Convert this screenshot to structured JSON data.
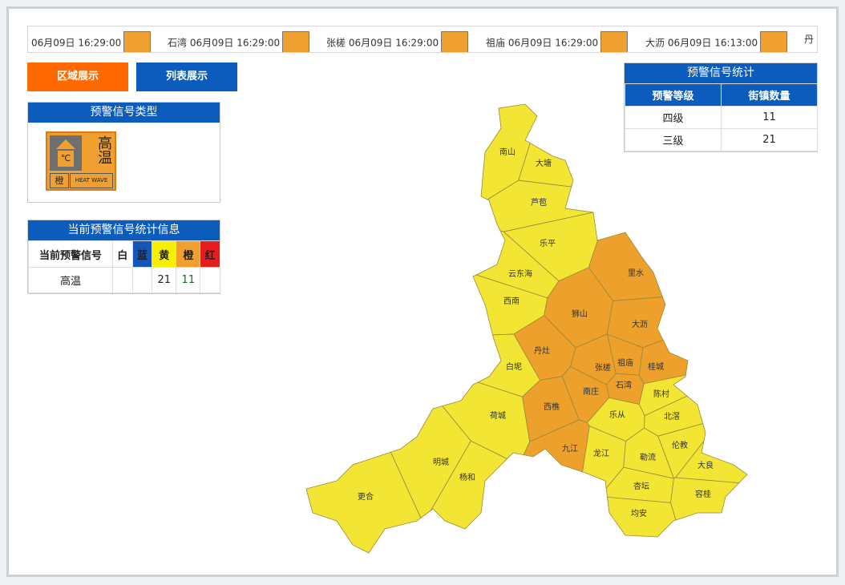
{
  "ticker": [
    {
      "time": "06月09日 16:29:00"
    },
    {
      "town": "石湾",
      "time": "06月09日 16:29:00"
    },
    {
      "town": "张槎",
      "time": "06月09日 16:29:00"
    },
    {
      "town": "祖庙",
      "time": "06月09日 16:29:00"
    },
    {
      "town": "大沥",
      "time": "06月09日 16:13:00"
    },
    {
      "town": "丹"
    }
  ],
  "buttons": [
    "区域展示",
    "列表展示"
  ],
  "signal_type": {
    "title": "预警信号类型",
    "icon": {
      "unit": "℃",
      "name": "高温",
      "level": "橙",
      "english": "HEAT WAVE"
    }
  },
  "current_stats": {
    "title": "当前预警信号统计信息",
    "headers": [
      "当前预警信号",
      "白",
      "蓝",
      "黄",
      "橙",
      "红"
    ],
    "rows": [
      {
        "signal": "高温",
        "yellow": 21,
        "orange": 11
      }
    ]
  },
  "level_stats": {
    "title": "预警信号统计",
    "headers": [
      "预警等级",
      "街镇数量"
    ],
    "rows": [
      [
        "四级",
        11
      ],
      [
        "三级",
        21
      ]
    ]
  },
  "map": {
    "towns": [
      {
        "name": "南山",
        "color": "#f2e533"
      },
      {
        "name": "大塘",
        "color": "#f2e533"
      },
      {
        "name": "芦苞",
        "color": "#f2e533"
      },
      {
        "name": "乐平",
        "color": "#f2e533"
      },
      {
        "name": "云东海",
        "color": "#f2e533"
      },
      {
        "name": "西南",
        "color": "#f2e533"
      },
      {
        "name": "里水",
        "color": "#eda02b"
      },
      {
        "name": "狮山",
        "color": "#eda02b"
      },
      {
        "name": "大沥",
        "color": "#eda02b"
      },
      {
        "name": "丹灶",
        "color": "#eda02b"
      },
      {
        "name": "祖庙",
        "color": "#eda02b"
      },
      {
        "name": "桂城",
        "color": "#eda02b"
      },
      {
        "name": "张槎",
        "color": "#eda02b"
      },
      {
        "name": "石湾",
        "color": "#eda02b"
      },
      {
        "name": "白坭",
        "color": "#f2e533"
      },
      {
        "name": "南庄",
        "color": "#eda02b"
      },
      {
        "name": "陈村",
        "color": "#f2e533"
      },
      {
        "name": "北滘",
        "color": "#f2e533"
      },
      {
        "name": "乐从",
        "color": "#f2e533"
      },
      {
        "name": "西樵",
        "color": "#eda02b"
      },
      {
        "name": "荷城",
        "color": "#f2e533"
      },
      {
        "name": "九江",
        "color": "#eda02b"
      },
      {
        "name": "龙江",
        "color": "#f2e533"
      },
      {
        "name": "勒流",
        "color": "#f2e533"
      },
      {
        "name": "伦教",
        "color": "#f2e533"
      },
      {
        "name": "大良",
        "color": "#f2e533"
      },
      {
        "name": "杏坛",
        "color": "#f2e533"
      },
      {
        "name": "容桂",
        "color": "#f2e533"
      },
      {
        "name": "均安",
        "color": "#f2e533"
      },
      {
        "name": "明城",
        "color": "#f2e533"
      },
      {
        "name": "杨和",
        "color": "#f2e533"
      },
      {
        "name": "更合",
        "color": "#f2e533"
      }
    ]
  }
}
